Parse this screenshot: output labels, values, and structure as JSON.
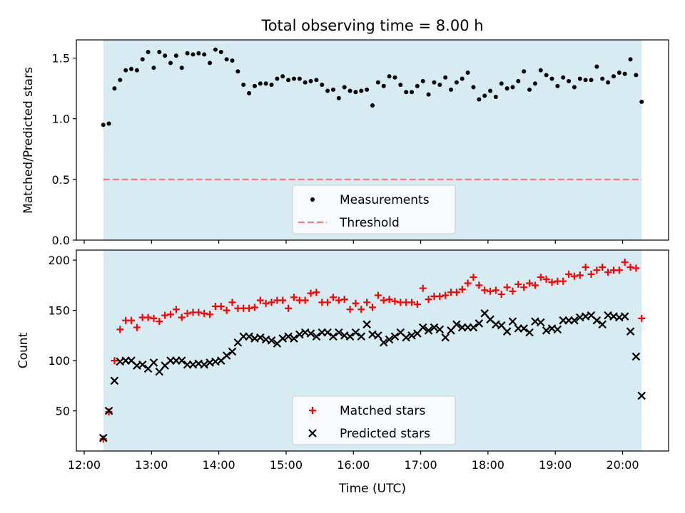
{
  "colors": {
    "observing_band": "#add8e6",
    "measurement": "#000000",
    "threshold": "#f08080",
    "matched": "#ff0000",
    "predicted": "#000000"
  },
  "chart_data": [
    {
      "type": "scatter",
      "title": "Total observing time = 8.00 h",
      "xlabel": "",
      "ylabel": "Matched/Predicted stars",
      "xlim": [
        "11:53",
        "20:41"
      ],
      "ylim": [
        0,
        1.65
      ],
      "yticks": [
        0.0,
        0.5,
        1.0,
        1.5
      ],
      "ytick_labels": [
        "0.0",
        "0.5",
        "1.0",
        "1.5"
      ],
      "shaded_span": [
        "12:17",
        "20:17"
      ],
      "legend": {
        "position": "lower center",
        "entries": [
          "Measurements",
          "Threshold"
        ]
      },
      "series": [
        {
          "name": "Measurements",
          "marker": "dot",
          "x": [
            "12:17",
            "12:22",
            "12:27",
            "12:32",
            "12:37",
            "12:42",
            "12:47",
            "12:52",
            "12:57",
            "13:02",
            "13:07",
            "13:12",
            "13:17",
            "13:22",
            "13:27",
            "13:32",
            "13:37",
            "13:42",
            "13:47",
            "13:52",
            "13:57",
            "14:02",
            "14:07",
            "14:12",
            "14:17",
            "14:22",
            "14:27",
            "14:32",
            "14:37",
            "14:42",
            "14:47",
            "14:52",
            "14:57",
            "15:02",
            "15:07",
            "15:12",
            "15:17",
            "15:22",
            "15:27",
            "15:32",
            "15:37",
            "15:42",
            "15:47",
            "15:52",
            "15:57",
            "16:02",
            "16:07",
            "16:12",
            "16:17",
            "16:22",
            "16:27",
            "16:32",
            "16:37",
            "16:42",
            "16:47",
            "16:52",
            "16:57",
            "17:02",
            "17:07",
            "17:12",
            "17:17",
            "17:22",
            "17:27",
            "17:32",
            "17:37",
            "17:42",
            "17:47",
            "17:52",
            "17:57",
            "18:02",
            "18:07",
            "18:12",
            "18:17",
            "18:22",
            "18:27",
            "18:32",
            "18:37",
            "18:42",
            "18:47",
            "18:52",
            "18:57",
            "19:02",
            "19:07",
            "19:12",
            "19:17",
            "19:22",
            "19:27",
            "19:32",
            "19:37",
            "19:42",
            "19:47",
            "19:52",
            "19:57",
            "20:02",
            "20:07",
            "20:12",
            "20:17"
          ],
          "y": [
            0.95,
            0.96,
            1.25,
            1.32,
            1.4,
            1.41,
            1.4,
            1.49,
            1.55,
            1.42,
            1.55,
            1.52,
            1.46,
            1.52,
            1.42,
            1.54,
            1.53,
            1.54,
            1.53,
            1.46,
            1.57,
            1.55,
            1.49,
            1.48,
            1.39,
            1.28,
            1.21,
            1.27,
            1.29,
            1.29,
            1.28,
            1.33,
            1.35,
            1.32,
            1.33,
            1.33,
            1.3,
            1.31,
            1.32,
            1.28,
            1.23,
            1.24,
            1.17,
            1.26,
            1.23,
            1.22,
            1.23,
            1.24,
            1.11,
            1.3,
            1.27,
            1.35,
            1.34,
            1.28,
            1.22,
            1.22,
            1.27,
            1.31,
            1.2,
            1.3,
            1.28,
            1.34,
            1.24,
            1.3,
            1.33,
            1.38,
            1.26,
            1.16,
            1.19,
            1.23,
            1.18,
            1.29,
            1.25,
            1.26,
            1.31,
            1.39,
            1.24,
            1.29,
            1.4,
            1.36,
            1.33,
            1.27,
            1.34,
            1.31,
            1.26,
            1.33,
            1.32,
            1.32,
            1.43,
            1.33,
            1.3,
            1.35,
            1.38,
            1.37,
            1.49,
            1.36,
            1.14
          ]
        },
        {
          "name": "Threshold",
          "type": "line",
          "style": "dashed",
          "x": [
            "12:17",
            "20:17"
          ],
          "y": [
            0.5,
            0.5
          ]
        }
      ]
    },
    {
      "type": "scatter",
      "title": "",
      "xlabel": "Time (UTC)",
      "ylabel": "Count",
      "xlim": [
        "11:53",
        "20:41"
      ],
      "ylim": [
        10,
        210
      ],
      "yticks": [
        50,
        100,
        150,
        200
      ],
      "ytick_labels": [
        "50",
        "100",
        "150",
        "200"
      ],
      "xticks": [
        "12:00",
        "13:00",
        "14:00",
        "15:00",
        "16:00",
        "17:00",
        "18:00",
        "19:00",
        "20:00"
      ],
      "xtick_labels": [
        "12:00",
        "13:00",
        "14:00",
        "15:00",
        "16:00",
        "17:00",
        "18:00",
        "19:00",
        "20:00"
      ],
      "shaded_span": [
        "12:17",
        "20:17"
      ],
      "legend": {
        "position": "lower center",
        "entries": [
          "Matched stars",
          "Predicted stars"
        ]
      },
      "series": [
        {
          "name": "Matched stars",
          "marker": "plus",
          "x": [
            "12:17",
            "12:22",
            "12:27",
            "12:32",
            "12:37",
            "12:42",
            "12:47",
            "12:52",
            "12:57",
            "13:02",
            "13:07",
            "13:12",
            "13:17",
            "13:22",
            "13:27",
            "13:32",
            "13:37",
            "13:42",
            "13:47",
            "13:52",
            "13:57",
            "14:02",
            "14:07",
            "14:12",
            "14:17",
            "14:22",
            "14:27",
            "14:32",
            "14:37",
            "14:42",
            "14:47",
            "14:52",
            "14:57",
            "15:02",
            "15:07",
            "15:12",
            "15:17",
            "15:22",
            "15:27",
            "15:32",
            "15:37",
            "15:42",
            "15:47",
            "15:52",
            "15:57",
            "16:02",
            "16:07",
            "16:12",
            "16:17",
            "16:22",
            "16:27",
            "16:32",
            "16:37",
            "16:42",
            "16:47",
            "16:52",
            "16:57",
            "17:02",
            "17:07",
            "17:12",
            "17:17",
            "17:22",
            "17:27",
            "17:32",
            "17:37",
            "17:42",
            "17:47",
            "17:52",
            "17:57",
            "18:02",
            "18:07",
            "18:12",
            "18:17",
            "18:22",
            "18:27",
            "18:32",
            "18:37",
            "18:42",
            "18:47",
            "18:52",
            "18:57",
            "19:02",
            "19:07",
            "19:12",
            "19:17",
            "19:22",
            "19:27",
            "19:32",
            "19:37",
            "19:42",
            "19:47",
            "19:52",
            "19:57",
            "20:02",
            "20:07",
            "20:12",
            "20:17"
          ],
          "y": [
            22,
            49,
            100,
            131,
            140,
            140,
            133,
            143,
            143,
            142,
            139,
            145,
            146,
            151,
            143,
            147,
            148,
            148,
            147,
            146,
            154,
            154,
            150,
            158,
            152,
            152,
            152,
            153,
            160,
            157,
            158,
            160,
            160,
            152,
            163,
            160,
            160,
            167,
            168,
            158,
            158,
            163,
            160,
            161,
            151,
            157,
            151,
            158,
            153,
            165,
            160,
            161,
            159,
            158,
            158,
            158,
            156,
            172,
            161,
            164,
            164,
            165,
            168,
            168,
            171,
            177,
            183,
            175,
            170,
            169,
            170,
            166,
            173,
            169,
            176,
            173,
            177,
            175,
            183,
            181,
            178,
            179,
            179,
            186,
            184,
            185,
            193,
            186,
            190,
            193,
            188,
            190,
            190,
            198,
            193,
            192,
            142
          ]
        },
        {
          "name": "Predicted stars",
          "marker": "x",
          "x": [
            "12:17",
            "12:22",
            "12:27",
            "12:32",
            "12:37",
            "12:42",
            "12:47",
            "12:52",
            "12:57",
            "13:02",
            "13:07",
            "13:12",
            "13:17",
            "13:22",
            "13:27",
            "13:32",
            "13:37",
            "13:42",
            "13:47",
            "13:52",
            "13:57",
            "14:02",
            "14:07",
            "14:12",
            "14:17",
            "14:22",
            "14:27",
            "14:32",
            "14:37",
            "14:42",
            "14:47",
            "14:52",
            "14:57",
            "15:02",
            "15:07",
            "15:12",
            "15:17",
            "15:22",
            "15:27",
            "15:32",
            "15:37",
            "15:42",
            "15:47",
            "15:52",
            "15:57",
            "16:02",
            "16:07",
            "16:12",
            "16:17",
            "16:22",
            "16:27",
            "16:32",
            "16:37",
            "16:42",
            "16:47",
            "16:52",
            "16:57",
            "17:02",
            "17:07",
            "17:12",
            "17:17",
            "17:22",
            "17:27",
            "17:32",
            "17:37",
            "17:42",
            "17:47",
            "17:52",
            "17:57",
            "18:02",
            "18:07",
            "18:12",
            "18:17",
            "18:22",
            "18:27",
            "18:32",
            "18:37",
            "18:42",
            "18:47",
            "18:52",
            "18:57",
            "19:02",
            "19:07",
            "19:12",
            "19:17",
            "19:22",
            "19:27",
            "19:32",
            "19:37",
            "19:42",
            "19:47",
            "19:52",
            "19:57",
            "20:02",
            "20:07",
            "20:12",
            "20:17"
          ],
          "y": [
            23,
            50,
            80,
            99,
            100,
            100,
            95,
            96,
            92,
            98,
            89,
            95,
            100,
            100,
            100,
            96,
            96,
            97,
            96,
            98,
            99,
            100,
            105,
            109,
            118,
            124,
            124,
            122,
            123,
            121,
            120,
            117,
            122,
            124,
            122,
            126,
            128,
            127,
            124,
            128,
            128,
            124,
            128,
            125,
            124,
            128,
            124,
            136,
            126,
            125,
            118,
            121,
            124,
            128,
            123,
            125,
            127,
            133,
            130,
            133,
            131,
            123,
            130,
            136,
            133,
            133,
            133,
            137,
            147,
            141,
            136,
            135,
            129,
            139,
            132,
            132,
            128,
            139,
            138,
            130,
            132,
            131,
            140,
            140,
            140,
            143,
            144,
            145,
            140,
            136,
            145,
            144,
            143,
            144,
            129,
            104,
            65
          ]
        }
      ]
    }
  ]
}
